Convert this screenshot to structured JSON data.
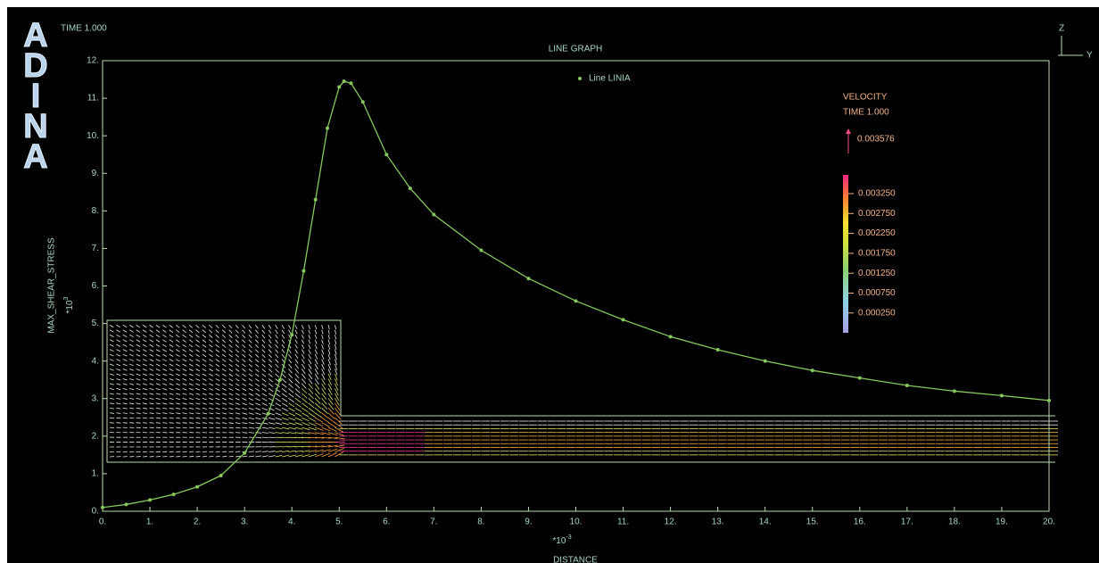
{
  "logo": [
    "A",
    "D",
    "I",
    "N",
    "A"
  ],
  "time": "TIME 1.000",
  "triad": {
    "z": "Z",
    "y": "Y"
  },
  "chart_data": {
    "type": "line",
    "title": "LINE GRAPH",
    "x_label": "DISTANCE",
    "x_multiplier": "*10",
    "x_exponent": "-3",
    "y_label": "MAX_SHEAR_STRESS",
    "y_multiplier": "*10",
    "y_exponent": "3",
    "x": [
      0,
      0.5,
      1,
      1.5,
      2,
      2.5,
      3,
      3.5,
      3.75,
      4,
      4.25,
      4.5,
      4.75,
      5,
      5.1,
      5.25,
      5.5,
      6,
      6.5,
      7,
      8,
      9,
      10,
      11,
      12,
      13,
      14,
      15,
      16,
      17,
      18,
      19,
      20
    ],
    "series": [
      {
        "name": "Line LINIA",
        "color": "#86c85e",
        "values": [
          0.1,
          0.18,
          0.3,
          0.45,
          0.65,
          0.95,
          1.55,
          2.6,
          3.5,
          4.7,
          6.4,
          8.3,
          10.2,
          11.3,
          11.45,
          11.4,
          10.9,
          9.5,
          8.6,
          7.9,
          6.95,
          6.2,
          5.6,
          5.1,
          4.65,
          4.3,
          4.0,
          3.75,
          3.55,
          3.35,
          3.2,
          3.08,
          2.95
        ]
      }
    ],
    "xlim": [
      0,
      20
    ],
    "ylim": [
      0,
      12
    ],
    "xticks": [
      {
        "value": 0,
        "label": "0."
      },
      {
        "value": 1,
        "label": "1."
      },
      {
        "value": 2,
        "label": "2."
      },
      {
        "value": 3,
        "label": "3."
      },
      {
        "value": 4,
        "label": "4."
      },
      {
        "value": 5,
        "label": "5."
      },
      {
        "value": 6,
        "label": "6."
      },
      {
        "value": 7,
        "label": "7."
      },
      {
        "value": 8,
        "label": "8."
      },
      {
        "value": 9,
        "label": "9."
      },
      {
        "value": 10,
        "label": "10."
      },
      {
        "value": 11,
        "label": "11."
      },
      {
        "value": 12,
        "label": "12."
      },
      {
        "value": 13,
        "label": "13."
      },
      {
        "value": 14,
        "label": "14."
      },
      {
        "value": 15,
        "label": "15."
      },
      {
        "value": 16,
        "label": "16."
      },
      {
        "value": 17,
        "label": "17."
      },
      {
        "value": 18,
        "label": "18."
      },
      {
        "value": 19,
        "label": "19."
      },
      {
        "value": 20,
        "label": "20."
      }
    ],
    "yticks": [
      {
        "value": 0,
        "label": "0."
      },
      {
        "value": 1,
        "label": "1."
      },
      {
        "value": 2,
        "label": "2."
      },
      {
        "value": 3,
        "label": "3."
      },
      {
        "value": 4,
        "label": "4."
      },
      {
        "value": 5,
        "label": "5."
      },
      {
        "value": 6,
        "label": "6."
      },
      {
        "value": 7,
        "label": "7."
      },
      {
        "value": 8,
        "label": "8."
      },
      {
        "value": 9,
        "label": "9."
      },
      {
        "value": 10,
        "label": "10."
      },
      {
        "value": 11,
        "label": "11."
      },
      {
        "value": 12,
        "label": "12."
      }
    ]
  },
  "colorbar": {
    "title": "VELOCITY",
    "time": "TIME 1.000",
    "reference": "0.003576",
    "labels": [
      "0.003250",
      "0.002750",
      "0.002250",
      "0.001750",
      "0.001250",
      "0.000750",
      "0.000250"
    ]
  }
}
